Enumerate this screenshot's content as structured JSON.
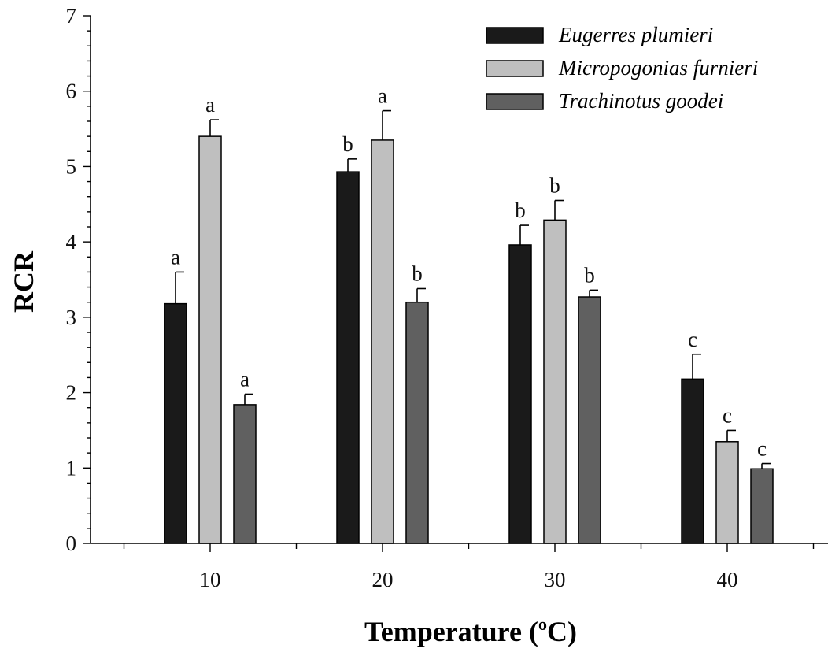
{
  "chart_data": {
    "type": "bar",
    "xlabel_main": "Temperature (",
    "xlabel_sup": "o",
    "xlabel_end": "C)",
    "ylabel": "RCR",
    "ylim": [
      0,
      7
    ],
    "yticks": [
      "0",
      "1",
      "2",
      "3",
      "4",
      "5",
      "6",
      "7"
    ],
    "categories": [
      "10",
      "20",
      "30",
      "40"
    ],
    "legend_position": "top-right",
    "series": [
      {
        "name": "Eugerres plumieri",
        "color": "#1a1a1a",
        "values": [
          3.18,
          4.93,
          3.96,
          2.18
        ],
        "errors": [
          0.42,
          0.17,
          0.26,
          0.33
        ],
        "letters": [
          "a",
          "b",
          "b",
          "c"
        ]
      },
      {
        "name": "Micropogonias furnieri",
        "color": "#bfbfbf",
        "values": [
          5.4,
          5.35,
          4.29,
          1.35
        ],
        "errors": [
          0.22,
          0.39,
          0.26,
          0.15
        ],
        "letters": [
          "a",
          "a",
          "b",
          "c"
        ]
      },
      {
        "name": "Trachinotus goodei",
        "color": "#606060",
        "values": [
          1.84,
          3.2,
          3.27,
          0.99
        ],
        "errors": [
          0.14,
          0.18,
          0.09,
          0.07
        ],
        "letters": [
          "a",
          "b",
          "b",
          "c"
        ]
      }
    ]
  }
}
